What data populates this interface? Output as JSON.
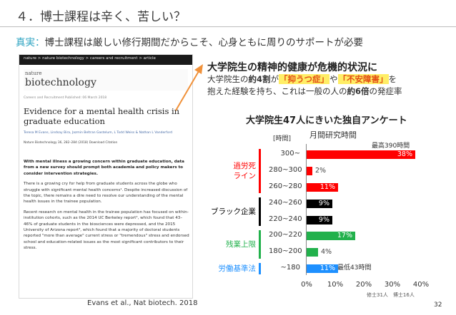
{
  "slide": {
    "title": "４．博士課程は辛く、苦しい？",
    "subtitle_label": "真実：",
    "subtitle_text": "博士課程は厳しい修行期間だからこそ、心身ともに周りのサポートが必要",
    "page_number": "32"
  },
  "article": {
    "breadcrumb": "nature > nature biotechnology > careers and recruitment > article",
    "logo_small": "nature",
    "logo_big": "biotechnology",
    "meta": "Careers and Recruitment   Published: 06 March 2018",
    "headline": "Evidence for a mental health crisis in graduate education",
    "authors": "Teresa M Evans, Lindsay Bira, Jazmin Beltran Gastelum, L Todd Weiss & Nathan L Vanderford",
    "journal": "Nature Biotechnology 36, 282–284 (2018)   Download Citation",
    "para1": "With mental illness a growing concern within graduate education, data from a new survey should prompt both academia and policy makers to consider intervention strategies.",
    "para2": "There is a growing cry for help from graduate students across the globe who struggle with significant mental health concerns¹. Despite increased discussion of the topic, there remains a dire need to resolve our understanding of the mental health issues in the trainee population.",
    "para3": "Recent research on mental health in the trainee population has focused on within-institution cohorts, such as the 2014 UC Berkeley report², which found that 43–46% of graduate students in the biosciences were depressed, and the 2015 University of Arizona report³, which found that a majority of doctoral students reported \"more than average\" current stress or \"tremendous\" stress and endorsed school and education-related issues as the most significant contributors to their stress.",
    "citation": "Evans et al., Nat biotech. 2018"
  },
  "right": {
    "headline": "大学院生の精神的健康が危機的状況に",
    "line1_a": "大学院生の",
    "line1_b": "約4割",
    "line1_c": "が",
    "line1_d": "「抑うつ症」",
    "line1_e": "や",
    "line1_f": "「不安障害」",
    "line1_g": "を",
    "line2_a": "抱えた経験を持ち、これは一般の人の",
    "line2_b": "約6倍",
    "line2_c": "の発症率"
  },
  "chart_data": {
    "type": "bar",
    "orientation": "horizontal",
    "title": "大学院生47人にきいた独自アンケート",
    "subtitle": "月間研究時間",
    "ylabel": "[時間]",
    "categories": [
      "300~",
      "280~300",
      "260~280",
      "240~260",
      "220~240",
      "200~220",
      "180~200",
      "~180"
    ],
    "values": [
      38,
      2,
      11,
      9,
      9,
      17,
      4,
      11
    ],
    "value_labels": [
      "38%",
      "2%",
      "11%",
      "9%",
      "9%",
      "17%",
      "4%",
      "11%"
    ],
    "bar_colors": [
      "#ff0000",
      "#ff0000",
      "#ff0000",
      "#000000",
      "#000000",
      "#22b14c",
      "#22b14c",
      "#1e90ff"
    ],
    "xlim": [
      0,
      40
    ],
    "xticks": [
      "0%",
      "10%",
      "20%",
      "30%",
      "40%"
    ],
    "annotations": {
      "max": "最高390時間",
      "min": "最低43時間",
      "sample": "修士31人　博士16人"
    },
    "groups": [
      {
        "label": "過労死\nライン",
        "color": "#ff0000",
        "from": 0,
        "to": 2
      },
      {
        "label": "ブラック企業",
        "color": "#000000",
        "from": 3,
        "to": 4
      },
      {
        "label": "残業上限",
        "color": "#22b14c",
        "from": 5,
        "to": 6
      },
      {
        "label": "労働基準法",
        "color": "#1e90ff",
        "from": 7,
        "to": 7
      }
    ]
  }
}
